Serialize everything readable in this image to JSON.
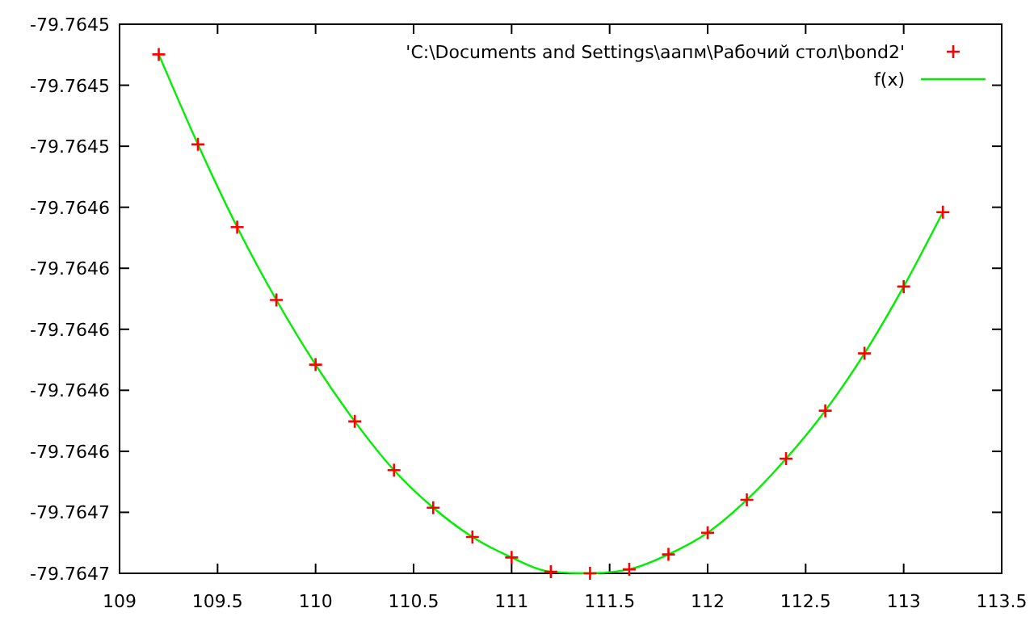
{
  "chart_data": {
    "type": "scatter",
    "x": [
      109.2,
      109.4,
      109.6,
      109.8,
      110.0,
      110.2,
      110.4,
      110.6,
      110.8,
      111.0,
      111.2,
      111.4,
      111.6,
      111.8,
      112.0,
      112.2,
      112.4,
      112.6,
      112.8,
      113.0,
      113.2
    ],
    "series": [
      {
        "name": "'C:\\Documents and Settings\\аапм\\Рабочий стол\\bond2'",
        "marker": "cross",
        "color": "#ff0000",
        "values": [
          -79.7645099,
          -79.7645394,
          -79.7645665,
          -79.7645904,
          -79.7646116,
          -79.7646302,
          -79.7646462,
          -79.7646585,
          -79.7646681,
          -79.7646748,
          -79.7646795,
          -79.76468,
          -79.7646787,
          -79.7646738,
          -79.7646667,
          -79.7646559,
          -79.7646424,
          -79.7646267,
          -79.7646079,
          -79.764586,
          -79.7645616
        ]
      },
      {
        "name": "f(x)",
        "type": "line",
        "marker": "none",
        "line_style": "solid",
        "color": "#00ee00",
        "values": [
          -79.7645099,
          -79.7645394,
          -79.7645665,
          -79.7645904,
          -79.7646116,
          -79.7646302,
          -79.7646462,
          -79.7646585,
          -79.7646681,
          -79.7646748,
          -79.7646795,
          -79.76468,
          -79.7646787,
          -79.7646738,
          -79.7646667,
          -79.7646559,
          -79.7646424,
          -79.7646267,
          -79.7646079,
          -79.764586,
          -79.7645616
        ]
      }
    ],
    "xlim": [
      109,
      113.5
    ],
    "xticks": [
      109,
      109.5,
      110,
      110.5,
      111,
      111.5,
      112,
      112.5,
      113,
      113.5
    ],
    "ylim": [
      -79.76468,
      -79.7645
    ],
    "yticks": [
      {
        "value": -79.7645,
        "label": "-79.7645"
      },
      {
        "value": -79.76452,
        "label": "-79.7645"
      },
      {
        "value": -79.76454,
        "label": "-79.7645"
      },
      {
        "value": -79.76456,
        "label": "-79.7646"
      },
      {
        "value": -79.76458,
        "label": "-79.7646"
      },
      {
        "value": -79.7646,
        "label": "-79.7646"
      },
      {
        "value": -79.76462,
        "label": "-79.7646"
      },
      {
        "value": -79.76464,
        "label": "-79.7646"
      },
      {
        "value": -79.76466,
        "label": "-79.7647"
      },
      {
        "value": -79.76468,
        "label": "-79.7647"
      }
    ],
    "grid": false,
    "legend": "top right"
  }
}
